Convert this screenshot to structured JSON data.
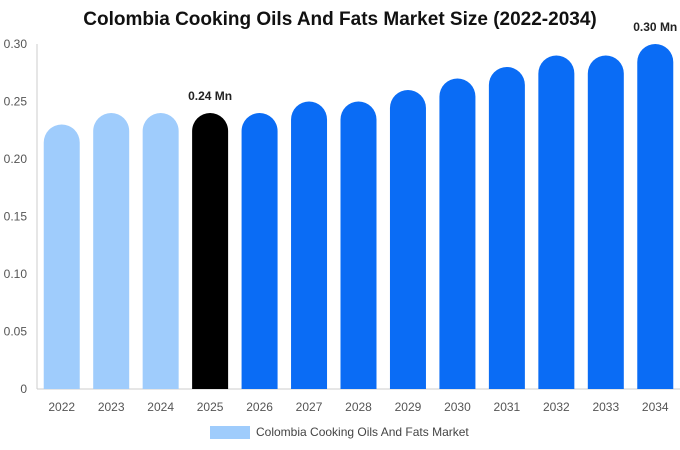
{
  "chart_data": {
    "type": "bar",
    "title": "Colombia Cooking Oils And Fats Market Size (2022-2034)",
    "xlabel": "",
    "ylabel": "",
    "categories": [
      "2022",
      "2023",
      "2024",
      "2025",
      "2026",
      "2027",
      "2028",
      "2029",
      "2030",
      "2031",
      "2032",
      "2033",
      "2034"
    ],
    "series": [
      {
        "name": "Colombia Cooking Oils And Fats Market",
        "values": [
          0.23,
          0.24,
          0.24,
          0.24,
          0.24,
          0.25,
          0.25,
          0.26,
          0.27,
          0.28,
          0.29,
          0.29,
          0.3
        ]
      }
    ],
    "ylim": [
      0,
      0.3
    ],
    "yticks": [
      "0",
      "0.05",
      "0.10",
      "0.15",
      "0.20",
      "0.25",
      "0.30"
    ],
    "bar_colors": {
      "historical": "#9fccfc",
      "current": "#000000",
      "forecast": "#0a6cf5"
    },
    "bar_color_groups": [
      "historical",
      "historical",
      "historical",
      "current",
      "forecast",
      "forecast",
      "forecast",
      "forecast",
      "forecast",
      "forecast",
      "forecast",
      "forecast",
      "forecast"
    ],
    "annotations": [
      {
        "category": "2025",
        "text": "0.24 Mn"
      },
      {
        "category": "2034",
        "text": "0.30 Mn"
      }
    ],
    "grid": false,
    "legend_position": "bottom-center"
  }
}
